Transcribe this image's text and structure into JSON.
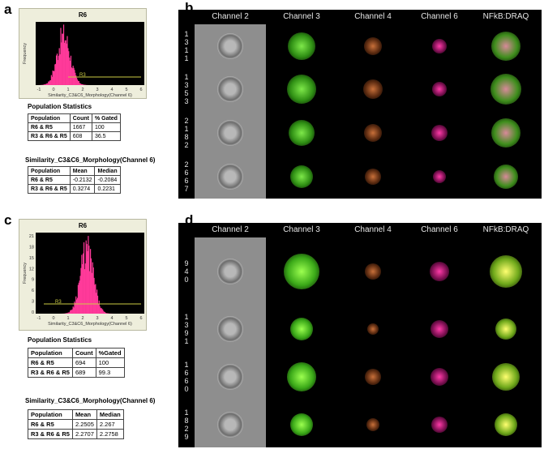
{
  "panels": {
    "a": "a",
    "b": "b",
    "c": "c",
    "d": "d"
  },
  "histA": {
    "title": "R6",
    "xlabel": "Similarity_C3&C6_Morphology(Channel 6)",
    "ylabel": "Frequency",
    "gate_label": "R3",
    "xticks": [
      "-1",
      "0",
      "1",
      "2",
      "3",
      "4",
      "5",
      "6"
    ],
    "yticks": [],
    "colors": {
      "bars": "#ff3a9a",
      "gate": "#cccc44"
    }
  },
  "histC": {
    "title": "R6",
    "xlabel": "Similarity_C3&C6_Morphology(Channel 6)",
    "ylabel": "Frequency",
    "gate_label": "R3",
    "xticks": [
      "-1",
      "0",
      "1",
      "2",
      "3",
      "4",
      "5",
      "6"
    ],
    "yticks": [
      "21",
      "18",
      "15",
      "12",
      "9",
      "6",
      "3",
      "0"
    ],
    "colors": {
      "bars": "#ff3a9a",
      "gate": "#cccc44"
    }
  },
  "statsA": {
    "heading": "Population Statistics",
    "headers": [
      "Population",
      "Count",
      "% Gated"
    ],
    "rows": [
      [
        "R6 & R5",
        "1667",
        "100"
      ],
      [
        "R3 & R6 & R5",
        "608",
        "36.5"
      ]
    ]
  },
  "simA": {
    "heading": "Similarity_C3&C6_Morphology(Channel 6)",
    "headers": [
      "Population",
      "Mean",
      "Median"
    ],
    "rows": [
      [
        "R6 & R5",
        "-0.2132",
        "-0.2084"
      ],
      [
        "R3 & R6 & R5",
        "0.3274",
        "0.2231"
      ]
    ]
  },
  "statsC": {
    "heading": "Population Statistics",
    "headers": [
      "Population",
      "Count",
      "%Gated"
    ],
    "rows": [
      [
        "R6 & R5",
        "694",
        "100"
      ],
      [
        "R3 & R6 & R5",
        "689",
        "99.3"
      ]
    ]
  },
  "simC": {
    "heading": "Similarity_C3&C6_Morphology(Channel 6)",
    "headers": [
      "Population",
      "Mean",
      "Median"
    ],
    "rows": [
      [
        "R6 & R5",
        "2.2505",
        "2.267"
      ],
      [
        "R3 & R6 & R5",
        "2.2707",
        "2.2758"
      ]
    ]
  },
  "galleryB": {
    "headers": [
      "Channel 2",
      "Channel 3",
      "Channel 4",
      "Channel 6",
      "NFkB:DRAQ"
    ],
    "rows": [
      {
        "id": [
          "1",
          "3",
          "1",
          "1"
        ]
      },
      {
        "id": [
          "1",
          "3",
          "5",
          "3"
        ]
      },
      {
        "id": [
          "2",
          "1",
          "8",
          "2"
        ]
      },
      {
        "id": [
          "2",
          "6",
          "6",
          "7"
        ]
      }
    ]
  },
  "galleryD": {
    "headers": [
      "Channel 2",
      "Channel 3",
      "Channel 4",
      "Channel 6",
      "NFkB:DRAQ"
    ],
    "rows": [
      {
        "id": [
          "9",
          "4",
          "0"
        ]
      },
      {
        "id": [
          "1",
          "3",
          "9",
          "1"
        ]
      },
      {
        "id": [
          "1",
          "6",
          "6",
          "0"
        ]
      },
      {
        "id": [
          "1",
          "8",
          "2",
          "9"
        ]
      }
    ]
  }
}
